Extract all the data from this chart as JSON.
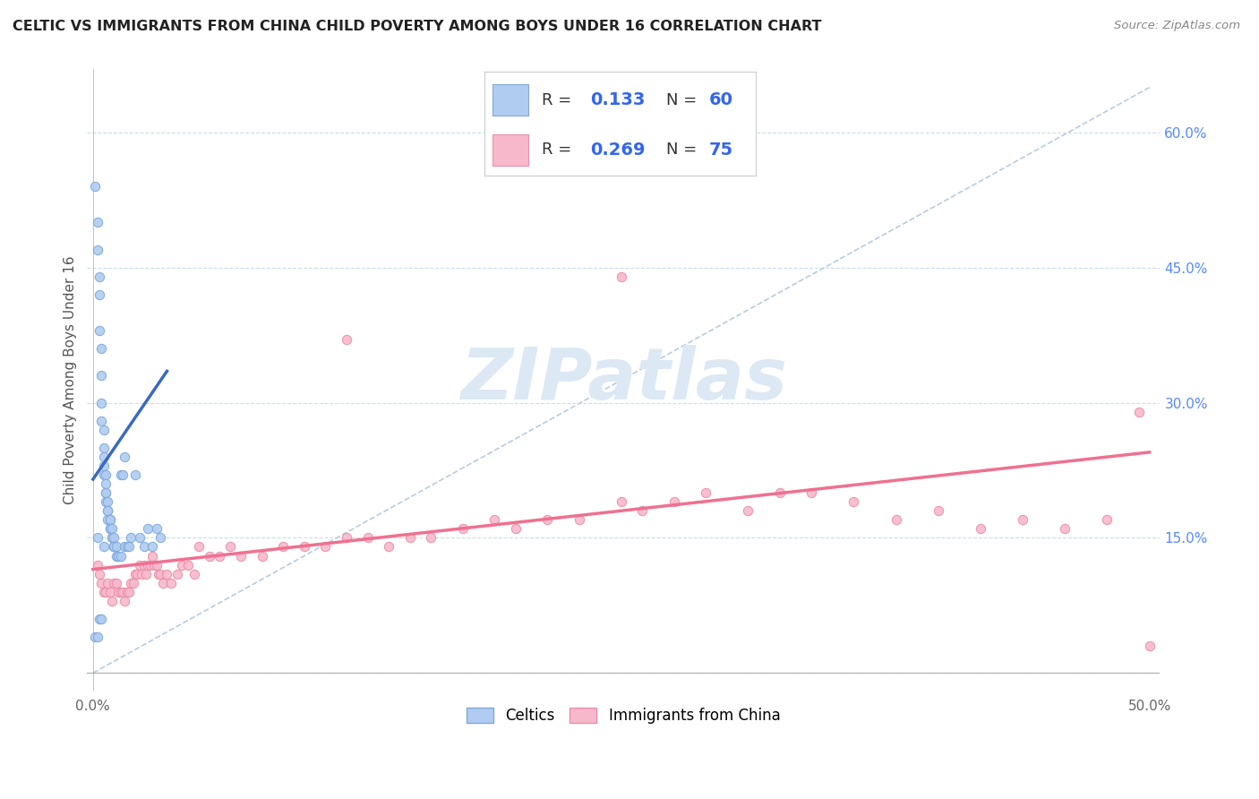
{
  "title": "CELTIC VS IMMIGRANTS FROM CHINA CHILD POVERTY AMONG BOYS UNDER 16 CORRELATION CHART",
  "source": "Source: ZipAtlas.com",
  "ylabel": "Child Poverty Among Boys Under 16",
  "xlim": [
    -0.003,
    0.505
  ],
  "ylim": [
    -0.02,
    0.67
  ],
  "xtick_vals": [
    0.0,
    0.05,
    0.1,
    0.15,
    0.2,
    0.25,
    0.3,
    0.35,
    0.4,
    0.45,
    0.5
  ],
  "xtick_labels": [
    "0.0%",
    "",
    "",
    "",
    "",
    "",
    "",
    "",
    "",
    "",
    "50.0%"
  ],
  "ytick_vals": [
    0.0,
    0.15,
    0.3,
    0.45,
    0.6
  ],
  "ytick_labels_right": [
    "",
    "15.0%",
    "30.0%",
    "45.0%",
    "60.0%"
  ],
  "celtics_color": "#b0ccf0",
  "celtics_edge": "#80a8dc",
  "china_color": "#f8b8cc",
  "china_edge": "#e890a8",
  "celtics_line_color": "#3a6abf",
  "china_line_color": "#f07090",
  "diagonal_color": "#b8ccde",
  "watermark_color": "#dce8f4",
  "celtics_line_x0": 0.0,
  "celtics_line_x1": 0.035,
  "celtics_line_y0": 0.215,
  "celtics_line_y1": 0.335,
  "china_line_x0": 0.0,
  "china_line_x1": 0.5,
  "china_line_y0": 0.115,
  "china_line_y1": 0.245,
  "celtics_x": [
    0.001,
    0.002,
    0.002,
    0.003,
    0.003,
    0.003,
    0.004,
    0.004,
    0.004,
    0.004,
    0.005,
    0.005,
    0.005,
    0.005,
    0.005,
    0.006,
    0.006,
    0.006,
    0.006,
    0.006,
    0.007,
    0.007,
    0.007,
    0.007,
    0.008,
    0.008,
    0.008,
    0.008,
    0.009,
    0.009,
    0.009,
    0.01,
    0.01,
    0.01,
    0.01,
    0.011,
    0.011,
    0.012,
    0.012,
    0.013,
    0.013,
    0.014,
    0.015,
    0.015,
    0.016,
    0.017,
    0.018,
    0.02,
    0.022,
    0.024,
    0.026,
    0.028,
    0.03,
    0.032,
    0.001,
    0.002,
    0.003,
    0.004,
    0.002,
    0.005
  ],
  "celtics_y": [
    0.54,
    0.5,
    0.47,
    0.44,
    0.42,
    0.38,
    0.36,
    0.33,
    0.3,
    0.28,
    0.27,
    0.25,
    0.24,
    0.23,
    0.22,
    0.22,
    0.21,
    0.2,
    0.2,
    0.19,
    0.19,
    0.18,
    0.18,
    0.17,
    0.17,
    0.17,
    0.16,
    0.16,
    0.16,
    0.15,
    0.15,
    0.15,
    0.14,
    0.14,
    0.14,
    0.14,
    0.13,
    0.13,
    0.13,
    0.13,
    0.22,
    0.22,
    0.24,
    0.14,
    0.14,
    0.14,
    0.15,
    0.22,
    0.15,
    0.14,
    0.16,
    0.14,
    0.16,
    0.15,
    0.04,
    0.04,
    0.06,
    0.06,
    0.15,
    0.14
  ],
  "china_x": [
    0.002,
    0.003,
    0.004,
    0.005,
    0.006,
    0.007,
    0.008,
    0.009,
    0.01,
    0.011,
    0.012,
    0.013,
    0.014,
    0.015,
    0.016,
    0.017,
    0.018,
    0.019,
    0.02,
    0.021,
    0.022,
    0.023,
    0.024,
    0.025,
    0.026,
    0.027,
    0.028,
    0.029,
    0.03,
    0.031,
    0.032,
    0.033,
    0.035,
    0.037,
    0.04,
    0.042,
    0.045,
    0.048,
    0.05,
    0.055,
    0.06,
    0.065,
    0.07,
    0.08,
    0.09,
    0.1,
    0.11,
    0.12,
    0.13,
    0.14,
    0.15,
    0.16,
    0.175,
    0.19,
    0.2,
    0.215,
    0.23,
    0.25,
    0.26,
    0.275,
    0.29,
    0.31,
    0.325,
    0.34,
    0.36,
    0.38,
    0.4,
    0.42,
    0.44,
    0.46,
    0.48,
    0.495,
    0.5,
    0.25,
    0.12
  ],
  "china_y": [
    0.12,
    0.11,
    0.1,
    0.09,
    0.09,
    0.1,
    0.09,
    0.08,
    0.1,
    0.1,
    0.09,
    0.09,
    0.09,
    0.08,
    0.09,
    0.09,
    0.1,
    0.1,
    0.11,
    0.11,
    0.12,
    0.11,
    0.12,
    0.11,
    0.12,
    0.12,
    0.13,
    0.12,
    0.12,
    0.11,
    0.11,
    0.1,
    0.11,
    0.1,
    0.11,
    0.12,
    0.12,
    0.11,
    0.14,
    0.13,
    0.13,
    0.14,
    0.13,
    0.13,
    0.14,
    0.14,
    0.14,
    0.15,
    0.15,
    0.14,
    0.15,
    0.15,
    0.16,
    0.17,
    0.16,
    0.17,
    0.17,
    0.19,
    0.18,
    0.19,
    0.2,
    0.18,
    0.2,
    0.2,
    0.19,
    0.17,
    0.18,
    0.16,
    0.17,
    0.16,
    0.17,
    0.29,
    0.03,
    0.44,
    0.37
  ]
}
